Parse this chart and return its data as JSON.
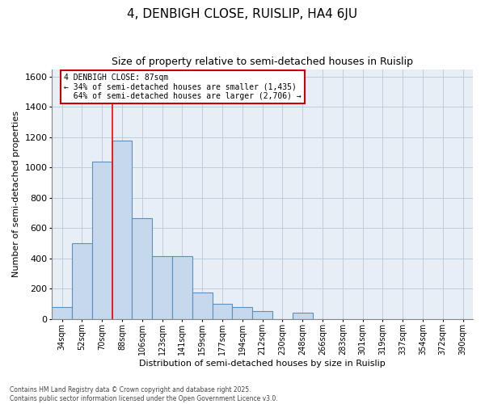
{
  "title": "4, DENBIGH CLOSE, RUISLIP, HA4 6JU",
  "subtitle": "Size of property relative to semi-detached houses in Ruislip",
  "xlabel": "Distribution of semi-detached houses by size in Ruislip",
  "ylabel": "Number of semi-detached properties",
  "categories": [
    "34sqm",
    "52sqm",
    "70sqm",
    "88sqm",
    "106sqm",
    "123sqm",
    "141sqm",
    "159sqm",
    "177sqm",
    "194sqm",
    "212sqm",
    "230sqm",
    "248sqm",
    "266sqm",
    "283sqm",
    "301sqm",
    "319sqm",
    "337sqm",
    "354sqm",
    "372sqm",
    "390sqm"
  ],
  "values": [
    75,
    500,
    1040,
    1175,
    665,
    415,
    415,
    175,
    100,
    75,
    50,
    0,
    40,
    0,
    0,
    0,
    0,
    0,
    0,
    0,
    0
  ],
  "bar_color": "#c5d8ec",
  "bar_edge_color": "#5a8fc0",
  "bar_edge_width": 0.8,
  "line_bar_index": 2.5,
  "property_label": "4 DENBIGH CLOSE: 87sqm",
  "pct_smaller": 34,
  "count_smaller": 1435,
  "pct_larger": 64,
  "count_larger": 2706,
  "annotation_box_color": "#cc0000",
  "ylim": [
    0,
    1650
  ],
  "yticks": [
    0,
    200,
    400,
    600,
    800,
    1000,
    1200,
    1400,
    1600
  ],
  "grid_color": "#b8c8d8",
  "bg_color": "#e8eef5",
  "title_fontsize": 11,
  "subtitle_fontsize": 9,
  "axis_label_fontsize": 8,
  "tick_fontsize": 7,
  "footer_text": "Contains HM Land Registry data © Crown copyright and database right 2025.\nContains public sector information licensed under the Open Government Licence v3.0."
}
